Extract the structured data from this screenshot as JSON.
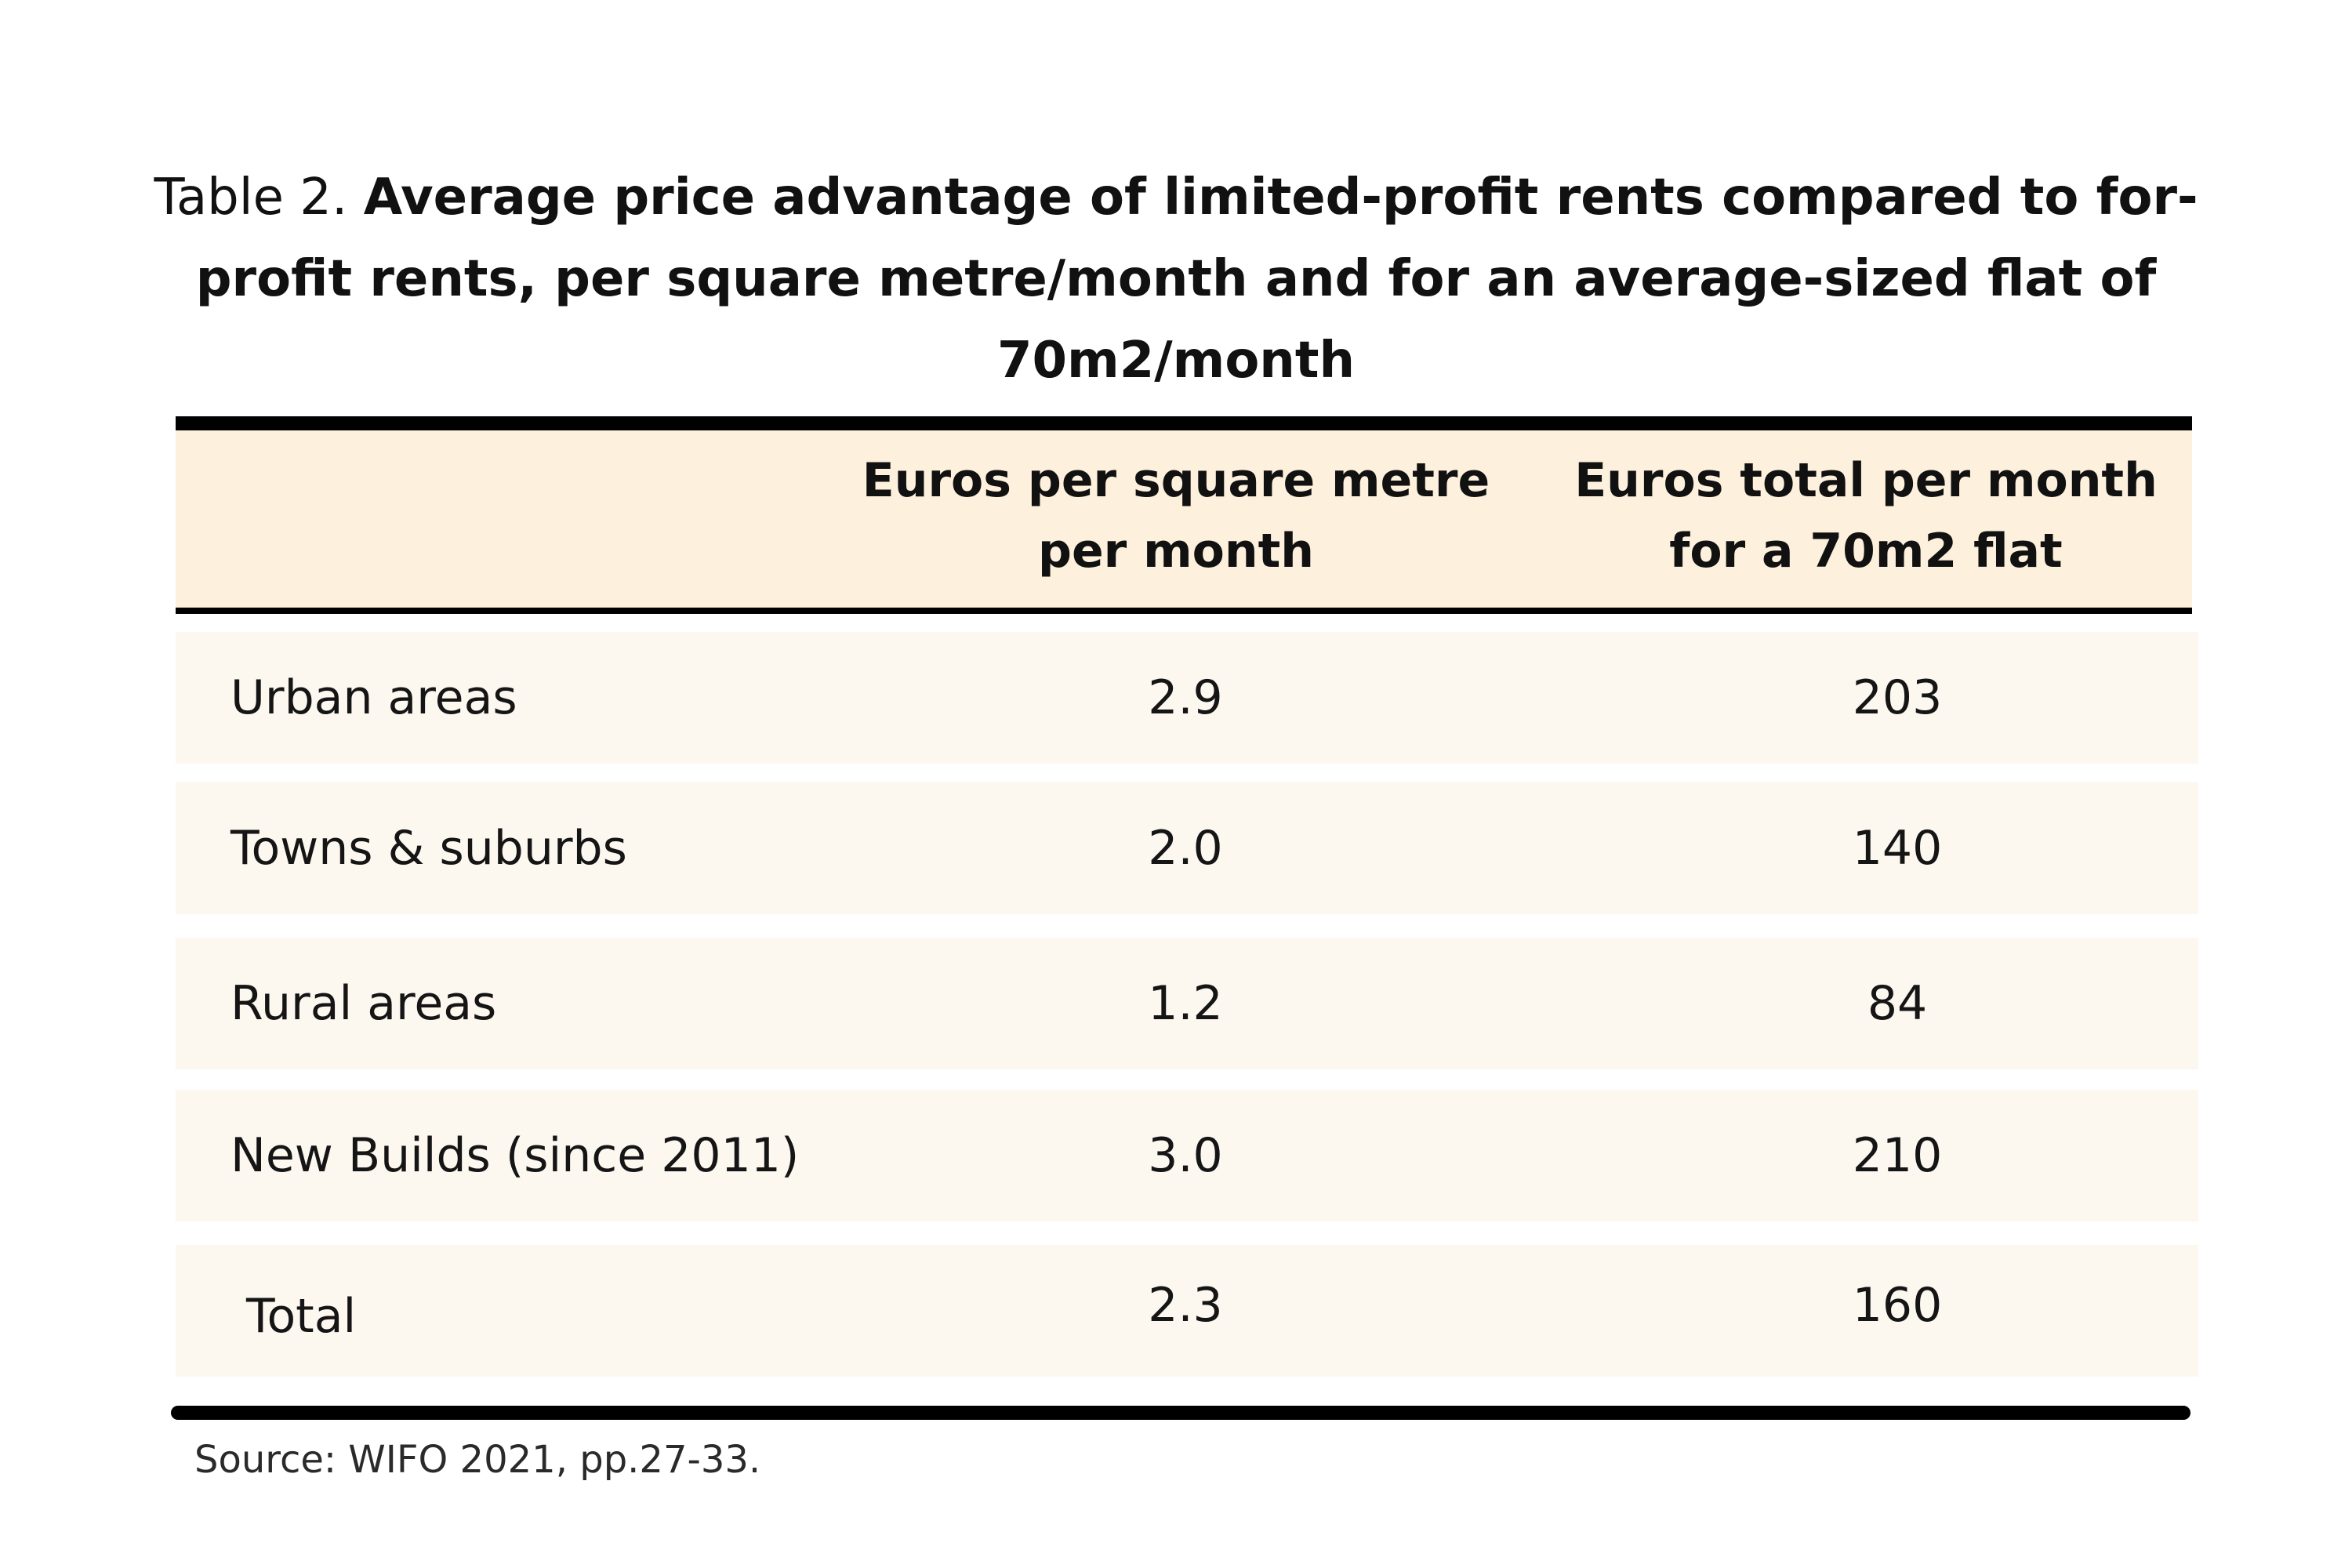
{
  "title": {
    "prefix": "Table 2.",
    "main": "Average price advantage of limited-profit rents compared to for-profit rents, per square metre/month and for an average-sized flat of 70m2/month"
  },
  "chart_data": {
    "type": "table",
    "columns": [
      "",
      "Euros per square metre per month",
      "Euros total per month for a 70m2 flat"
    ],
    "rows": [
      {
        "label": "Urban areas",
        "per_sqm": "2.9",
        "total": "203"
      },
      {
        "label": "Towns & suburbs",
        "per_sqm": "2.0",
        "total": "140"
      },
      {
        "label": "Rural areas",
        "per_sqm": "1.2",
        "total": "84"
      },
      {
        "label": "New Builds (since 2011)",
        "per_sqm": "3.0",
        "total": "210"
      },
      {
        "label": "Total",
        "per_sqm": "2.3",
        "total": "160"
      }
    ]
  },
  "source": "Source: WIFO 2021, pp.27-33.",
  "colors": {
    "header_bg": "#fdf0dc",
    "row_bg": "#fcf7ef",
    "rule": "#000000"
  }
}
